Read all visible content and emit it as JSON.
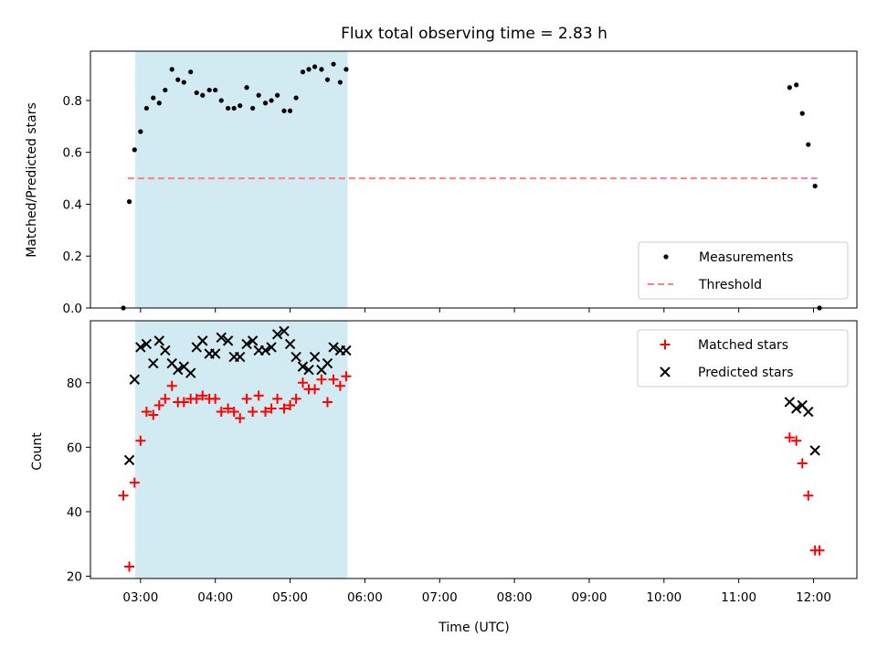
{
  "figure": {
    "title": "Flux total observing time = 2.83 h",
    "xlabel": "Time (UTC)"
  },
  "colors": {
    "shade": "#add8e6",
    "threshold": "#ff7f7f",
    "measurements": "#000000",
    "matched": "#ff0000",
    "predicted": "#000000"
  },
  "chart_data": [
    {
      "type": "scatter",
      "ylabel": "Matched/Predicted stars",
      "xlim": [
        2.33,
        12.58
      ],
      "ylim": [
        0.0,
        0.99
      ],
      "xticks": [
        3,
        4,
        5,
        6,
        7,
        8,
        9,
        10,
        11,
        12
      ],
      "yticks": [
        0.0,
        0.2,
        0.4,
        0.6,
        0.8
      ],
      "ytick_labels": [
        "0.0",
        "0.2",
        "0.4",
        "0.6",
        "0.8"
      ],
      "shaded_span": [
        2.93,
        5.77
      ],
      "legend": {
        "position": "lower-right",
        "entries": [
          "Measurements",
          "Threshold"
        ]
      },
      "threshold": {
        "name": "Threshold",
        "y": 0.5,
        "x": [
          2.83,
          12.05
        ]
      },
      "series": [
        {
          "name": "Measurements",
          "x": [
            2.77,
            2.85,
            2.92,
            3.0,
            3.08,
            3.17,
            3.25,
            3.33,
            3.42,
            3.5,
            3.58,
            3.67,
            3.75,
            3.83,
            3.92,
            4.0,
            4.08,
            4.17,
            4.25,
            4.33,
            4.42,
            4.5,
            4.58,
            4.67,
            4.75,
            4.83,
            4.92,
            5.0,
            5.08,
            5.17,
            5.25,
            5.33,
            5.42,
            5.5,
            5.58,
            5.67,
            5.75,
            11.68,
            11.77,
            11.85,
            11.93,
            12.02,
            12.08
          ],
          "y": [
            0.0,
            0.41,
            0.61,
            0.68,
            0.77,
            0.81,
            0.79,
            0.84,
            0.92,
            0.88,
            0.87,
            0.91,
            0.83,
            0.82,
            0.84,
            0.84,
            0.8,
            0.77,
            0.77,
            0.78,
            0.85,
            0.77,
            0.82,
            0.79,
            0.8,
            0.82,
            0.76,
            0.76,
            0.81,
            0.91,
            0.92,
            0.93,
            0.92,
            0.88,
            0.94,
            0.87,
            0.92,
            0.85,
            0.86,
            0.75,
            0.63,
            0.47,
            0.0
          ]
        }
      ]
    },
    {
      "type": "scatter",
      "ylabel": "Count",
      "xlim": [
        2.33,
        12.58
      ],
      "ylim": [
        19.3,
        99.2
      ],
      "xticks": [
        3,
        4,
        5,
        6,
        7,
        8,
        9,
        10,
        11,
        12
      ],
      "xtick_labels": [
        "03:00",
        "04:00",
        "05:00",
        "06:00",
        "07:00",
        "08:00",
        "09:00",
        "10:00",
        "11:00",
        "12:00"
      ],
      "yticks": [
        20,
        40,
        60,
        80
      ],
      "ytick_labels": [
        "20",
        "40",
        "60",
        "80"
      ],
      "shaded_span": [
        2.93,
        5.77
      ],
      "legend": {
        "position": "top-right",
        "entries": [
          "Matched stars",
          "Predicted stars"
        ]
      },
      "series": [
        {
          "name": "Matched stars",
          "marker": "plus",
          "x": [
            2.77,
            2.85,
            2.92,
            3.0,
            3.08,
            3.17,
            3.25,
            3.33,
            3.42,
            3.5,
            3.58,
            3.67,
            3.75,
            3.83,
            3.92,
            4.0,
            4.08,
            4.17,
            4.25,
            4.33,
            4.42,
            4.5,
            4.58,
            4.67,
            4.75,
            4.83,
            4.92,
            5.0,
            5.08,
            5.17,
            5.25,
            5.33,
            5.42,
            5.5,
            5.58,
            5.67,
            5.75,
            11.68,
            11.77,
            11.85,
            11.93,
            12.02,
            12.08
          ],
          "y": [
            45,
            23,
            49,
            62,
            71,
            70,
            73,
            75,
            79,
            74,
            74,
            75,
            75,
            76,
            75,
            75,
            71,
            72,
            71,
            69,
            75,
            71,
            76,
            71,
            72,
            75,
            72,
            73,
            75,
            80,
            78,
            78,
            81,
            74,
            81,
            79,
            82,
            63,
            62,
            55,
            45,
            28,
            28
          ]
        },
        {
          "name": "Predicted stars",
          "marker": "x",
          "x": [
            2.85,
            2.92,
            3.0,
            3.08,
            3.17,
            3.25,
            3.33,
            3.42,
            3.5,
            3.58,
            3.67,
            3.75,
            3.83,
            3.92,
            4.0,
            4.08,
            4.17,
            4.25,
            4.33,
            4.42,
            4.5,
            4.58,
            4.67,
            4.75,
            4.83,
            4.92,
            5.0,
            5.08,
            5.17,
            5.25,
            5.33,
            5.42,
            5.5,
            5.58,
            5.67,
            5.75,
            11.68,
            11.77,
            11.85,
            11.93,
            12.02
          ],
          "y": [
            56,
            81,
            91,
            92,
            86,
            93,
            90,
            86,
            84,
            85,
            83,
            91,
            93,
            89,
            89,
            94,
            93,
            88,
            88,
            92,
            93,
            90,
            90,
            91,
            95,
            96,
            92,
            88,
            85,
            84,
            88,
            84,
            86,
            91,
            90,
            90,
            74,
            72,
            73,
            71,
            59
          ]
        }
      ]
    }
  ]
}
